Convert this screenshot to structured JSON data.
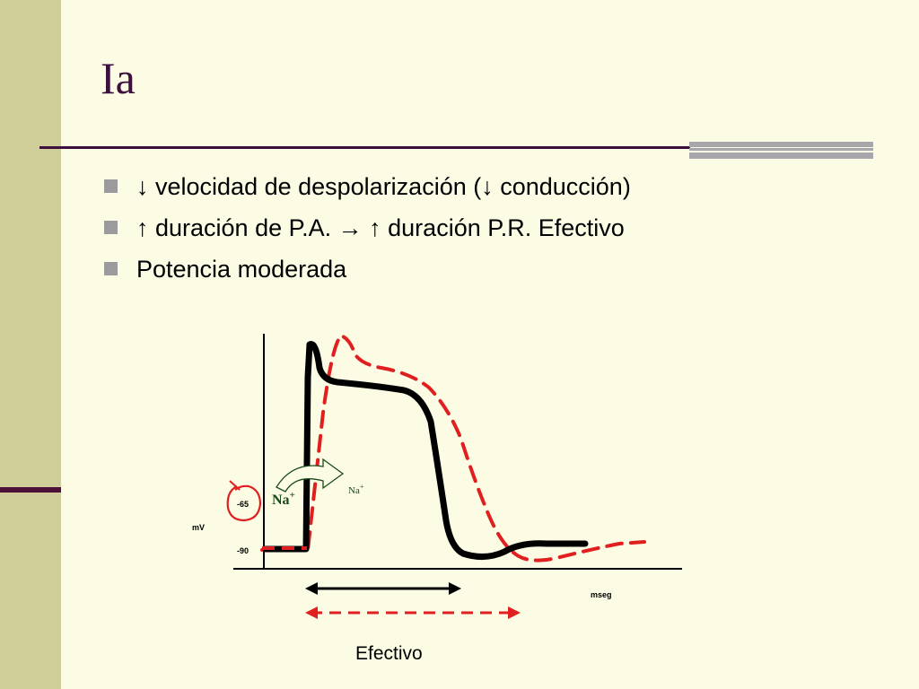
{
  "slide": {
    "title": "Ia",
    "bullets": [
      {
        "text": "↓ velocidad de despolarización (↓ conducción)"
      },
      {
        "text": "↑ duración de P.A. → ↑ duración P.R. Efectivo"
      },
      {
        "text": "Potencia moderada"
      }
    ]
  },
  "diagram": {
    "y_axis_label": "mV",
    "x_axis_label": "mseg",
    "tick_65": "-65",
    "tick_90": "-90",
    "ion_label_1": "Na",
    "ion_label_2": "Na",
    "ion_superscript": "+",
    "bottom_label": "Efectivo",
    "colors": {
      "baseline_curve": "#000000",
      "drug_curve": "#e02020",
      "ion_text": "#1a4a1a",
      "background": "#fcfbe4",
      "left_bar": "#cfcd98",
      "title": "#3d0f3d"
    }
  }
}
